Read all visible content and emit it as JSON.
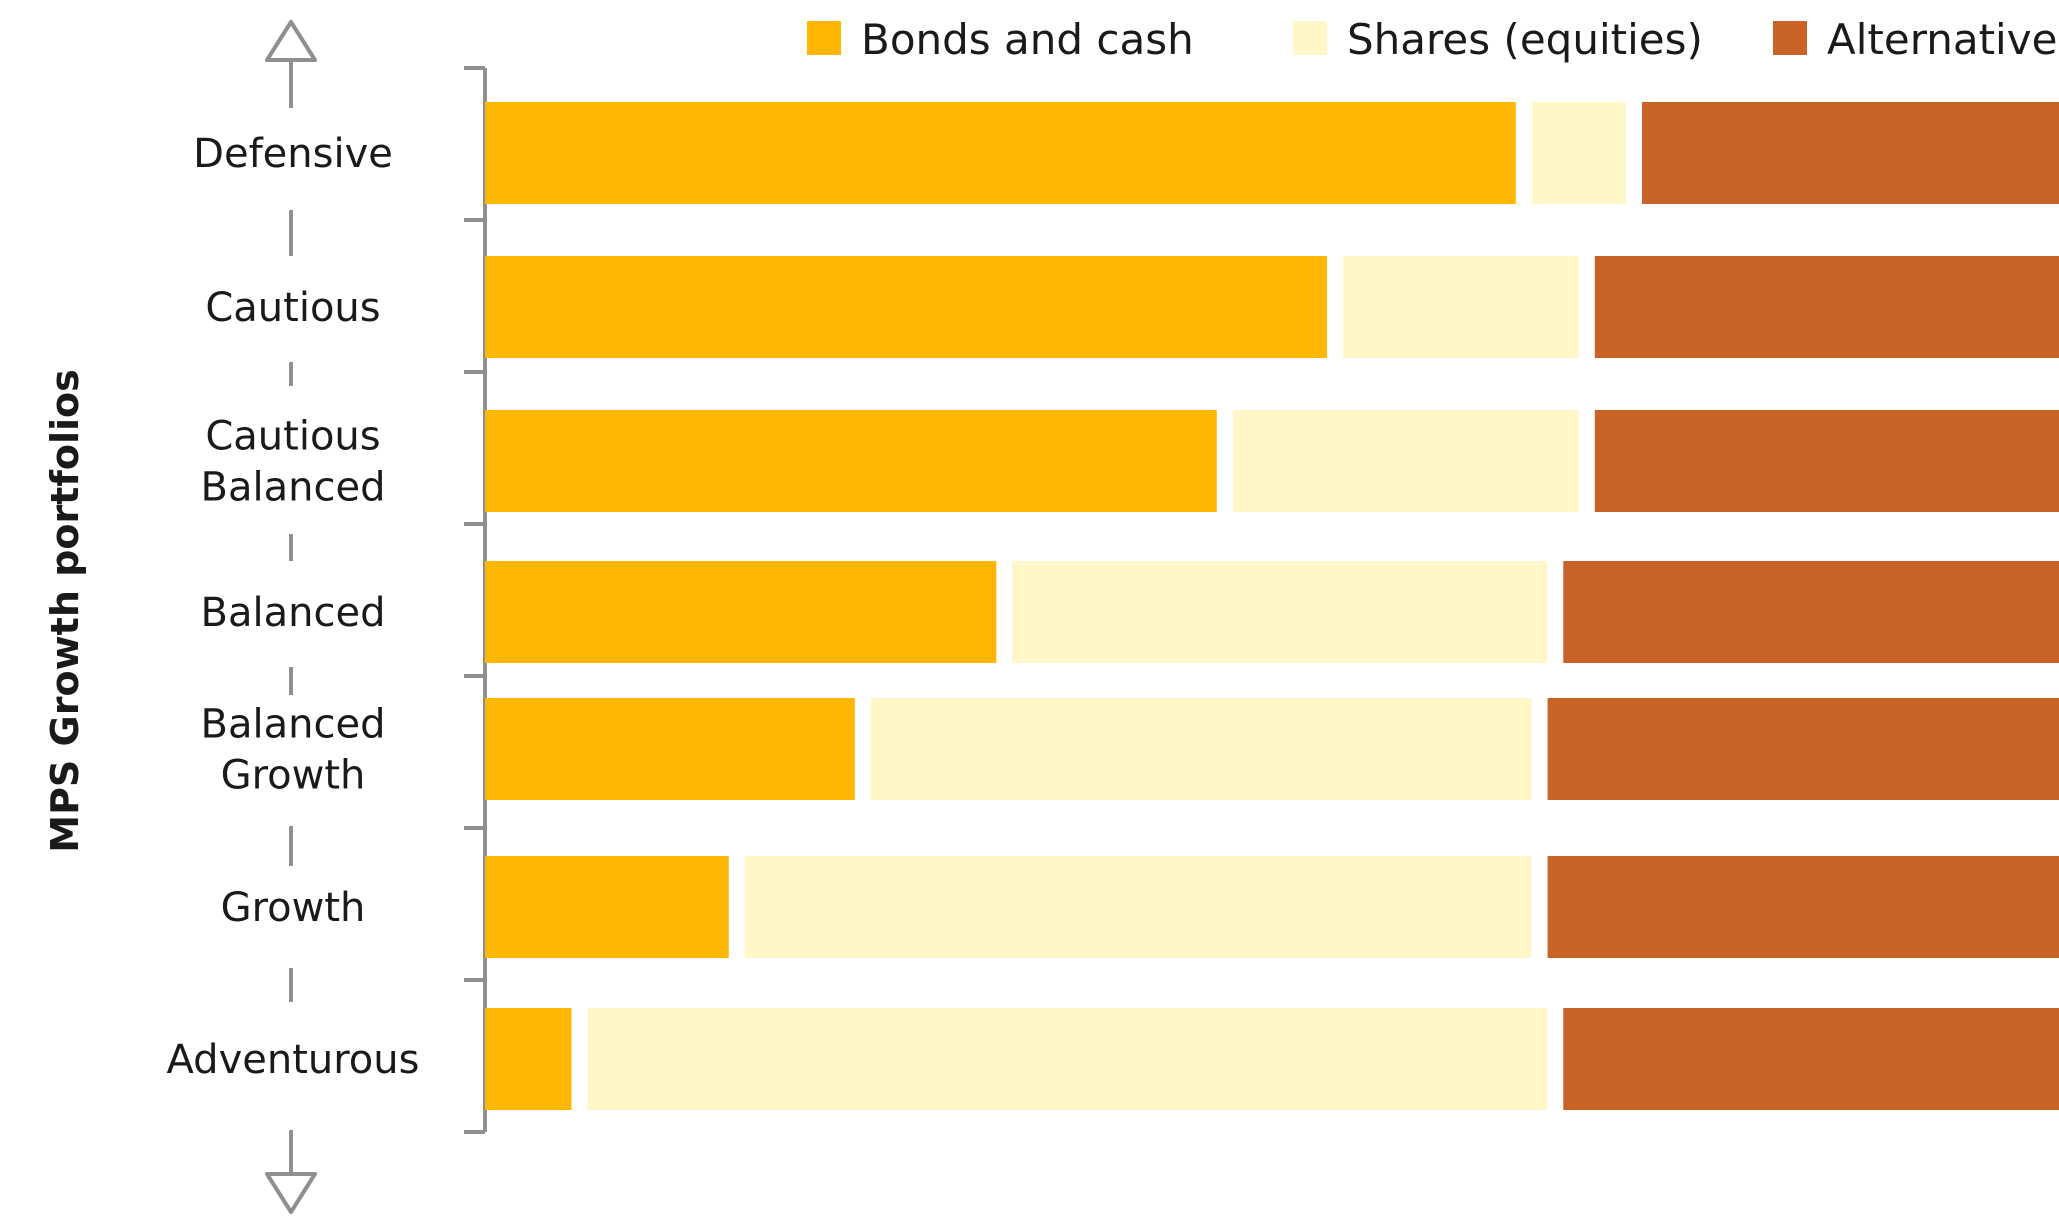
{
  "chart_data": {
    "type": "bar",
    "orientation": "horizontal",
    "stacked": true,
    "ylabel": "MPS Growth portfolios",
    "categories": [
      "Defensive",
      "Cautious",
      "Cautious\nBalanced",
      "Balanced",
      "Balanced\nGrowth",
      "Growth",
      "Adventurous"
    ],
    "series": [
      {
        "name": "Bonds and cash",
        "color": "#ffb703",
        "values": [
          66,
          54,
          47,
          33,
          24,
          16,
          6
        ]
      },
      {
        "name": "Shares (equities)",
        "color": "#fff7c7",
        "values": [
          7,
          16,
          23,
          35,
          43,
          51,
          62
        ]
      },
      {
        "name": "Alternatives",
        "color": "#c96227",
        "values": [
          27,
          30,
          30,
          32,
          33,
          33,
          32
        ]
      }
    ],
    "xlim": [
      0,
      100
    ],
    "legend_position": "top",
    "grid": false
  }
}
